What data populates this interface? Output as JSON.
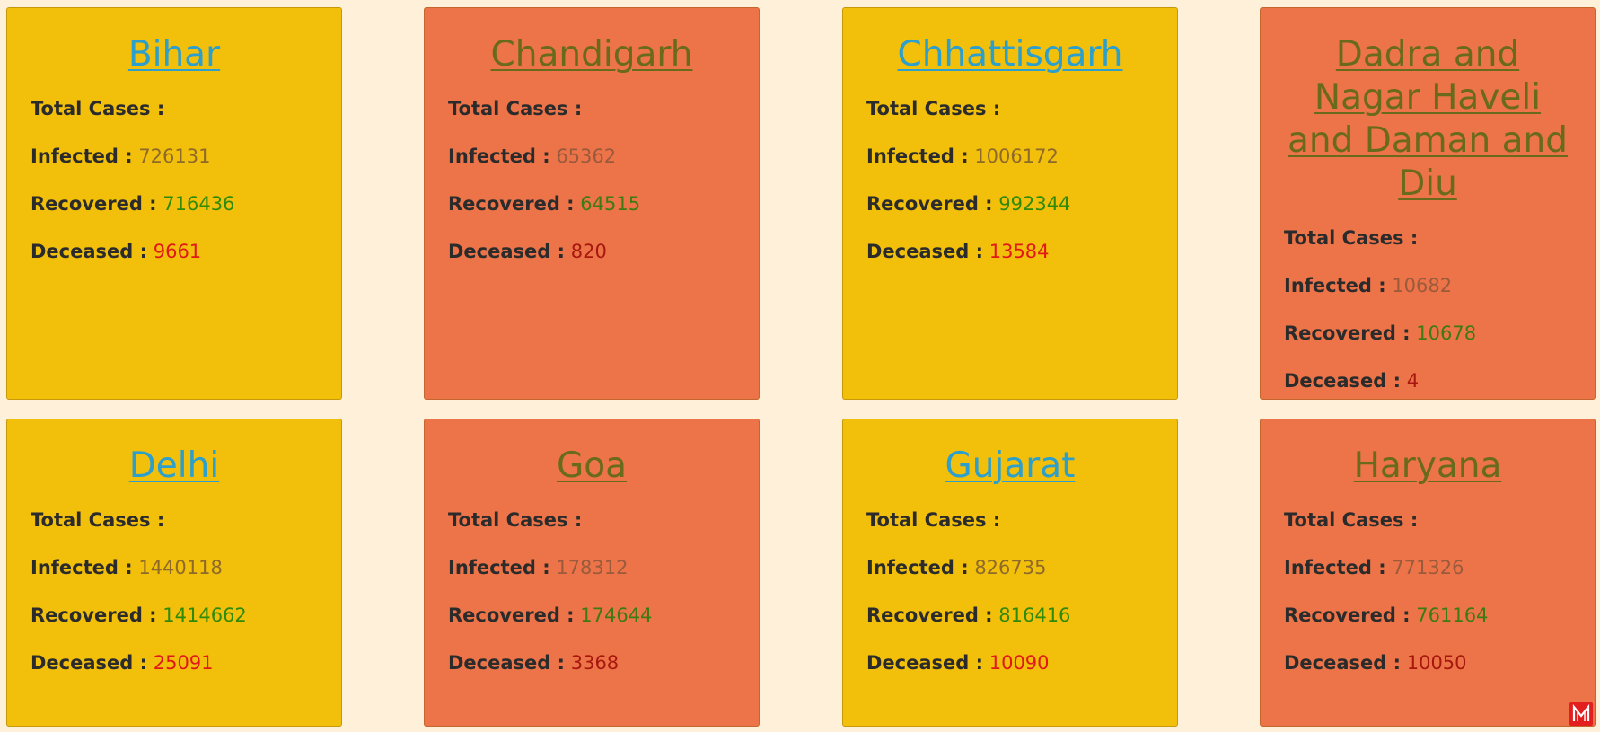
{
  "labels": {
    "total_cases": "Total Cases :",
    "infected": "Infected :",
    "recovered": "Recovered :",
    "deceased": "Deceased :"
  },
  "states": [
    {
      "name": "Bihar",
      "infected": "726131",
      "recovered": "716436",
      "deceased": "9661"
    },
    {
      "name": "Chandigarh",
      "infected": "65362",
      "recovered": "64515",
      "deceased": "820"
    },
    {
      "name": "Chhattisgarh",
      "infected": "1006172",
      "recovered": "992344",
      "deceased": "13584"
    },
    {
      "name": "Dadra and Nagar Haveli and Daman and Diu",
      "infected": "10682",
      "recovered": "10678",
      "deceased": "4"
    },
    {
      "name": "Delhi",
      "infected": "1440118",
      "recovered": "1414662",
      "deceased": "25091"
    },
    {
      "name": "Goa",
      "infected": "178312",
      "recovered": "174644",
      "deceased": "3368"
    },
    {
      "name": "Gujarat",
      "infected": "826735",
      "recovered": "816416",
      "deceased": "10090"
    },
    {
      "name": "Haryana",
      "infected": "771326",
      "recovered": "761164",
      "deceased": "10050"
    }
  ],
  "colors": {
    "background": "#fff0d9",
    "card_yellow": "#f2bf0b",
    "card_orange": "#ec7448",
    "link_yellow": "#2d9fcc",
    "link_orange": "#6a6a1c",
    "recovered": "#2f8a0a",
    "deceased": "#e01818"
  },
  "icons": {
    "corner_logo": "m-logo-icon"
  }
}
